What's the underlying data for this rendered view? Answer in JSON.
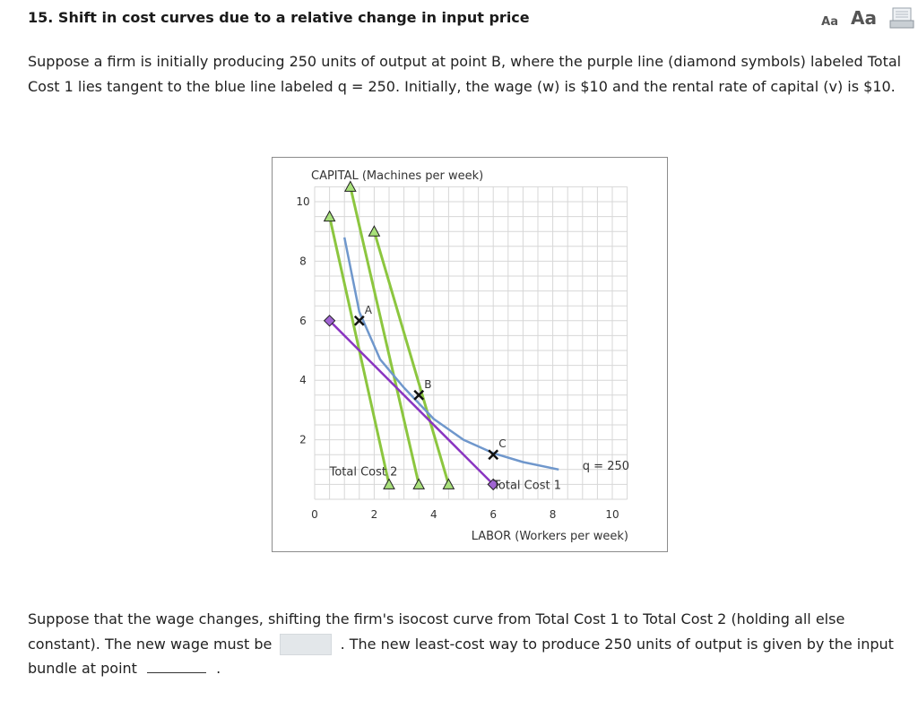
{
  "header": {
    "title": "15. Shift in cost curves due to a relative change in input price",
    "font_small_label": "Aa",
    "font_large_label": "Aa",
    "print_icon": "print-icon"
  },
  "intro": {
    "text": "Suppose a firm is initially producing 250 units of output at point B, where the purple line (diamond symbols) labeled Total Cost 1 lies tangent to the blue line labeled q = 250. Initially, the wage (w) is $10 and the rental rate of capital (v) is $10."
  },
  "question": {
    "text_before": "Suppose that the wage changes, shifting the firm's isocost curve from Total Cost 1 to Total Cost 2 (holding all else constant). The new wage must be",
    "text_middle": ". The new least-cost way to produce 250 units of output is given by the input bundle at point",
    "text_end": ".",
    "wage_answer": "",
    "point_answer": ""
  },
  "chart_data": {
    "type": "line",
    "ylabel": "CAPITAL (Machines per week)",
    "xlabel": "LABOR (Workers per week)",
    "xlim": [
      0,
      10.5
    ],
    "ylim": [
      0,
      10.5
    ],
    "x_ticks": [
      0,
      2,
      4,
      6,
      8,
      10
    ],
    "y_ticks": [
      2,
      4,
      6,
      8,
      10
    ],
    "grid": true,
    "colors": {
      "isoquant": "#6f97cc",
      "total_cost_1": "#8a35c1",
      "total_cost_2": "#8cc63f",
      "point_marker": "#111111"
    },
    "isoquant": {
      "name": "q = 250",
      "points": [
        [
          1.0,
          8.8
        ],
        [
          1.5,
          6.3
        ],
        [
          2.2,
          4.7
        ],
        [
          3.0,
          3.75
        ],
        [
          4.0,
          2.7
        ],
        [
          5.0,
          2.0
        ],
        [
          6.0,
          1.55
        ],
        [
          7.0,
          1.25
        ],
        [
          8.2,
          1.0
        ]
      ]
    },
    "total_cost_1": {
      "name": "Total Cost 1",
      "endpoints": [
        [
          0.5,
          6.0
        ],
        [
          6.0,
          0.5
        ]
      ]
    },
    "total_cost_2": {
      "name": "Total Cost 2",
      "lines": [
        {
          "endpoints": [
            [
              0.5,
              9.5
            ],
            [
              2.5,
              0.5
            ]
          ]
        },
        {
          "endpoints": [
            [
              1.2,
              10.5
            ],
            [
              3.5,
              0.5
            ]
          ]
        },
        {
          "endpoints": [
            [
              2.0,
              9.0
            ],
            [
              4.5,
              0.5
            ]
          ]
        }
      ]
    },
    "points": [
      {
        "label": "A",
        "x": 1.5,
        "y": 6.0
      },
      {
        "label": "B",
        "x": 3.5,
        "y": 3.5
      },
      {
        "label": "C",
        "x": 6.0,
        "y": 1.5
      }
    ]
  }
}
